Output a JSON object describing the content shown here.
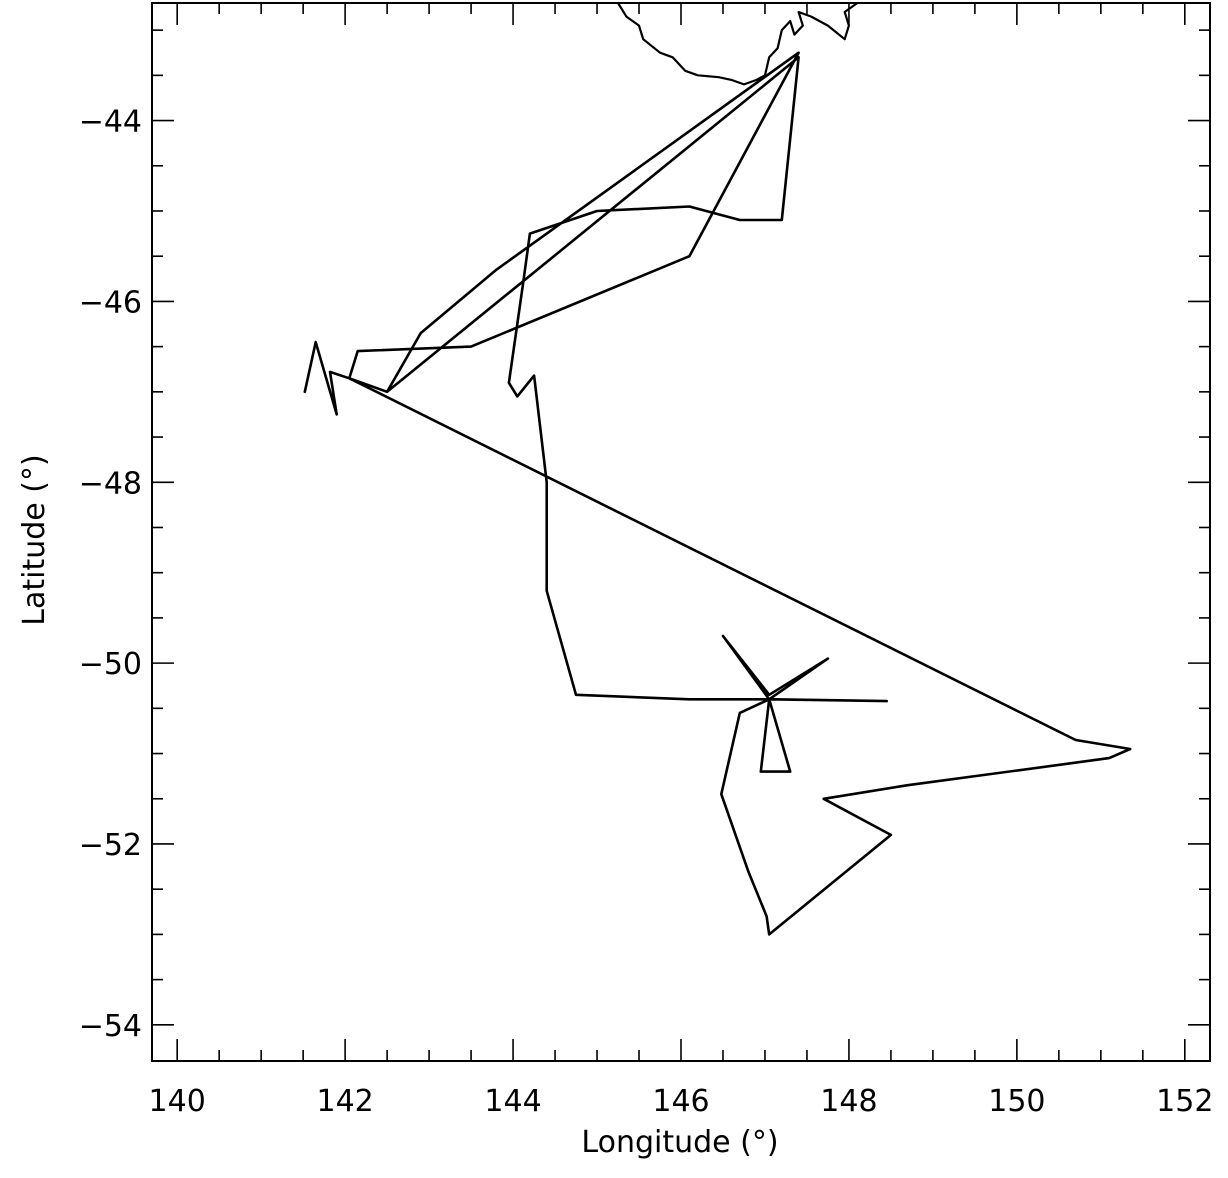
{
  "chart_data": {
    "type": "line",
    "xlabel": "Longitude (°)",
    "ylabel": "Latitude (°)",
    "xlim": [
      139.7,
      152.3
    ],
    "ylim": [
      -54.4,
      -42.7
    ],
    "xticks_major": [
      140,
      142,
      144,
      146,
      148,
      150,
      152
    ],
    "xtick_labels": [
      "140",
      "142",
      "144",
      "146",
      "148",
      "150",
      "152"
    ],
    "yticks_major": [
      -44,
      -46,
      -48,
      -50,
      -52,
      -54
    ],
    "ytick_labels": [
      "−44",
      "−46",
      "−48",
      "−50",
      "−52",
      "−54"
    ],
    "xticks_minor_step": 0.5,
    "yticks_minor_step": 0.5,
    "grid": false,
    "colors": {
      "line": "#000000",
      "frame": "#000000",
      "background": "#ffffff"
    },
    "coastline": [
      [
        145.25,
        -42.7
      ],
      [
        145.35,
        -42.85
      ],
      [
        145.5,
        -42.95
      ],
      [
        145.55,
        -43.1
      ],
      [
        145.75,
        -43.25
      ],
      [
        145.9,
        -43.3
      ],
      [
        146.05,
        -43.45
      ],
      [
        146.2,
        -43.5
      ],
      [
        146.45,
        -43.52
      ],
      [
        146.6,
        -43.55
      ],
      [
        146.75,
        -43.6
      ],
      [
        146.9,
        -43.55
      ],
      [
        147.0,
        -43.5
      ],
      [
        147.05,
        -43.3
      ],
      [
        147.15,
        -43.2
      ],
      [
        147.2,
        -43.0
      ],
      [
        147.3,
        -42.9
      ],
      [
        147.35,
        -43.05
      ],
      [
        147.45,
        -42.95
      ],
      [
        147.4,
        -42.8
      ],
      [
        147.55,
        -42.85
      ],
      [
        147.75,
        -42.95
      ],
      [
        147.95,
        -43.1
      ],
      [
        148.0,
        -42.95
      ],
      [
        147.95,
        -42.8
      ],
      [
        148.1,
        -42.7
      ]
    ],
    "series": [
      {
        "values": [
          [
            141.52,
            -47.0
          ],
          [
            141.65,
            -46.45
          ],
          [
            141.9,
            -47.25
          ],
          [
            141.82,
            -46.78
          ],
          [
            142.05,
            -46.85
          ],
          [
            142.5,
            -47.0
          ],
          [
            147.4,
            -43.3
          ],
          [
            147.2,
            -45.1
          ],
          [
            146.7,
            -45.1
          ],
          [
            146.1,
            -44.95
          ],
          [
            145.0,
            -45.0
          ],
          [
            144.2,
            -45.25
          ],
          [
            144.12,
            -45.8
          ],
          [
            143.95,
            -46.9
          ],
          [
            144.05,
            -47.05
          ],
          [
            144.25,
            -46.82
          ],
          [
            144.4,
            -48.0
          ],
          [
            144.4,
            -49.2
          ],
          [
            144.75,
            -50.35
          ],
          [
            146.1,
            -50.4
          ],
          [
            147.1,
            -50.4
          ],
          [
            148.45,
            -50.42
          ],
          [
            147.05,
            -50.4
          ],
          [
            146.5,
            -49.7
          ],
          [
            147.05,
            -50.35
          ],
          [
            147.75,
            -49.95
          ],
          [
            147.05,
            -50.4
          ],
          [
            146.95,
            -51.2
          ],
          [
            147.3,
            -51.2
          ],
          [
            147.05,
            -50.4
          ],
          [
            146.7,
            -50.55
          ],
          [
            146.48,
            -51.45
          ],
          [
            146.8,
            -52.3
          ],
          [
            147.02,
            -52.8
          ],
          [
            147.05,
            -53.0
          ],
          [
            148.5,
            -51.9
          ],
          [
            147.7,
            -51.5
          ],
          [
            148.7,
            -51.35
          ],
          [
            151.1,
            -51.05
          ],
          [
            151.35,
            -50.95
          ],
          [
            150.7,
            -50.85
          ],
          [
            142.05,
            -46.85
          ],
          [
            142.15,
            -46.55
          ],
          [
            143.5,
            -46.5
          ],
          [
            146.1,
            -45.5
          ],
          [
            147.4,
            -43.25
          ],
          [
            143.8,
            -45.65
          ],
          [
            142.9,
            -46.35
          ],
          [
            142.5,
            -47.0
          ]
        ]
      }
    ]
  }
}
